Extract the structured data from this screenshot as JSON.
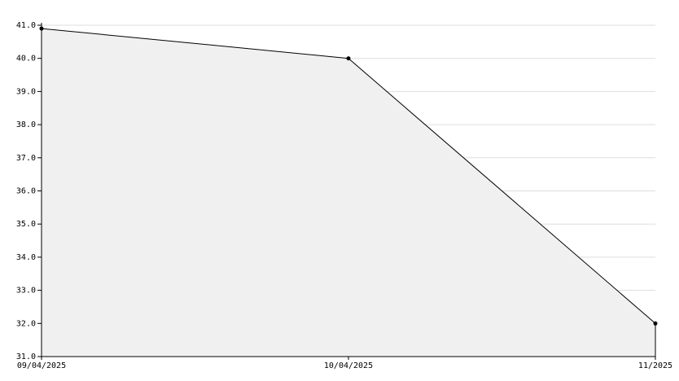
{
  "chart_data": {
    "type": "area",
    "categories": [
      "09/04/2025",
      "10/04/2025",
      "11/2025"
    ],
    "values": [
      40.9,
      40.0,
      32.0
    ],
    "color": "#000000",
    "fill": "#f0f0f0",
    "ylim": [
      31,
      41
    ],
    "yticks": [
      {
        "value": 31,
        "label": "31.0"
      },
      {
        "value": 32,
        "label": "32.0"
      },
      {
        "value": 33,
        "label": "33.0"
      },
      {
        "value": 34,
        "label": "34.0"
      },
      {
        "value": 35,
        "label": "35.0"
      },
      {
        "value": 36,
        "label": "36.0"
      },
      {
        "value": 37,
        "label": "37.0"
      },
      {
        "value": 38,
        "label": "38.0"
      },
      {
        "value": 39,
        "label": "39.0"
      },
      {
        "value": 40,
        "label": "40.0"
      },
      {
        "value": 41,
        "label": "41.0"
      }
    ],
    "grid": true
  }
}
